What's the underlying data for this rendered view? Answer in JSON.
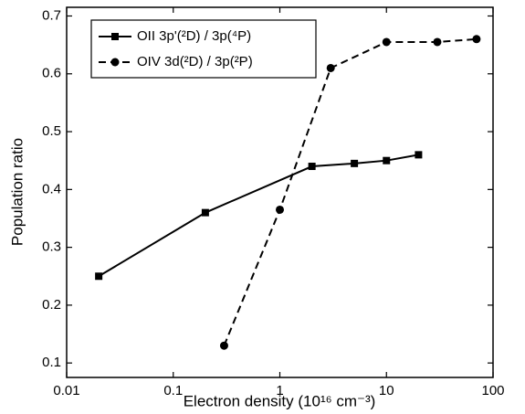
{
  "chart_data": {
    "type": "line",
    "x_label": "Electron density (10¹⁶ cm⁻³)",
    "y_label": "Population ratio",
    "x_scale": "log",
    "xlim": [
      0.01,
      100
    ],
    "xticks": [
      0.01,
      0.1,
      1,
      10,
      100
    ],
    "ylim": [
      0.075,
      0.715
    ],
    "yticks": [
      0.1,
      0.2,
      0.3,
      0.4,
      0.5,
      0.6,
      0.7
    ],
    "legend": "upper left",
    "series": [
      {
        "name": "OII  3p'(²D) / 3p(⁴P)",
        "color": "#000000",
        "line_style": "solid",
        "marker": "square",
        "x": [
          0.02,
          0.2,
          2,
          5,
          10,
          20
        ],
        "values": [
          0.25,
          0.36,
          0.44,
          0.445,
          0.45,
          0.46
        ]
      },
      {
        "name": "OIV  3d(²D) / 3p(²P)",
        "color": "#000000",
        "line_style": "dashed",
        "marker": "circle",
        "x": [
          0.3,
          1,
          3,
          10,
          30,
          70
        ],
        "values": [
          0.13,
          0.365,
          0.61,
          0.655,
          0.655,
          0.66
        ]
      }
    ]
  }
}
